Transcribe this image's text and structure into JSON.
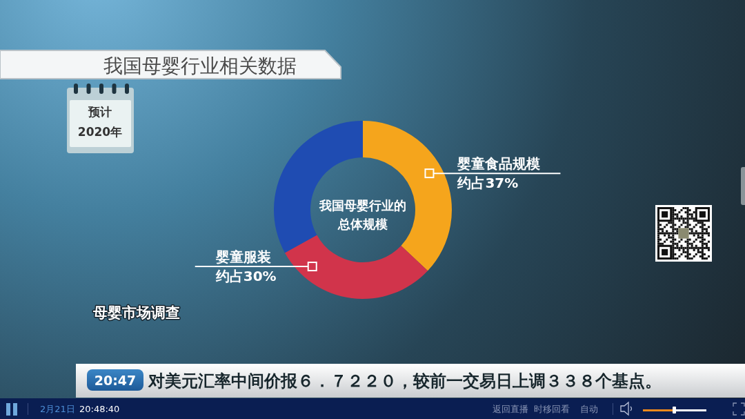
{
  "chart_data": {
    "type": "donut",
    "title": "我国母婴行业相关数据",
    "categories": [
      "婴童食品规模",
      "婴童服装",
      null
    ],
    "values": [
      37,
      30,
      33
    ],
    "colors": [
      "#f5a51c",
      "#d1344b",
      "#1f4cb2"
    ],
    "value_labels": [
      "约占37%",
      "约占30%",
      null
    ],
    "annotations": [
      "预计",
      "2020年",
      "我国母婴行业的",
      "总体规模",
      "母婴市场调查",
      "20:47",
      "对美元汇率中间价报６．７２２０，较前一交易日上调３３８个基点。",
      "2月21日",
      "20:48:40",
      "返回直播",
      "时移回看",
      "自动"
    ]
  }
}
